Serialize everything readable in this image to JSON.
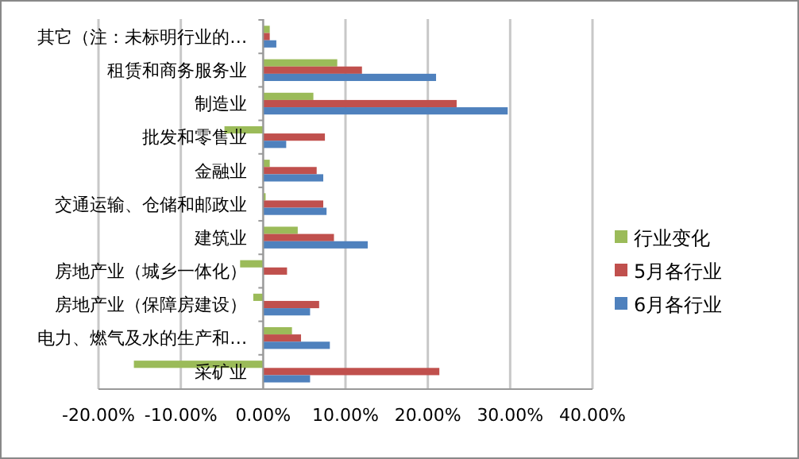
{
  "chart_data": {
    "type": "bar",
    "orientation": "horizontal",
    "categories": [
      "其它（注：未标明行业的…",
      "租赁和商务服务业",
      "制造业",
      "批发和零售业",
      "金融业",
      "交通运输、仓储和邮政业",
      "建筑业",
      "房地产业（城乡一体化）",
      "房地产业（保障房建设）",
      "电力、燃气及水的生产和…",
      "采矿业"
    ],
    "series": [
      {
        "name": "行业变化",
        "color": "#9bbb59",
        "values": [
          0.8,
          9.0,
          6.1,
          -4.7,
          0.8,
          0.3,
          4.2,
          -2.8,
          -1.2,
          3.5,
          -15.7
        ]
      },
      {
        "name": "5月各行业",
        "color": "#c0504d",
        "values": [
          0.8,
          12.0,
          23.5,
          7.5,
          6.5,
          7.3,
          8.6,
          2.9,
          6.8,
          4.6,
          21.4
        ]
      },
      {
        "name": "6月各行业",
        "color": "#4f81bd",
        "values": [
          1.6,
          21.0,
          29.7,
          2.8,
          7.3,
          7.7,
          12.7,
          0,
          5.7,
          8.1,
          5.7
        ]
      }
    ],
    "xlim": [
      -20,
      40
    ],
    "xticks": [
      {
        "value": -20,
        "label": "-20.00%"
      },
      {
        "value": -10,
        "label": "-10.00%"
      },
      {
        "value": 0,
        "label": "0.00%"
      },
      {
        "value": 10,
        "label": "10.00%"
      },
      {
        "value": 20,
        "label": "20.00%"
      },
      {
        "value": 30,
        "label": "30.00%"
      },
      {
        "value": 40,
        "label": "40.00%"
      }
    ],
    "grid": "x",
    "legend": "right"
  }
}
